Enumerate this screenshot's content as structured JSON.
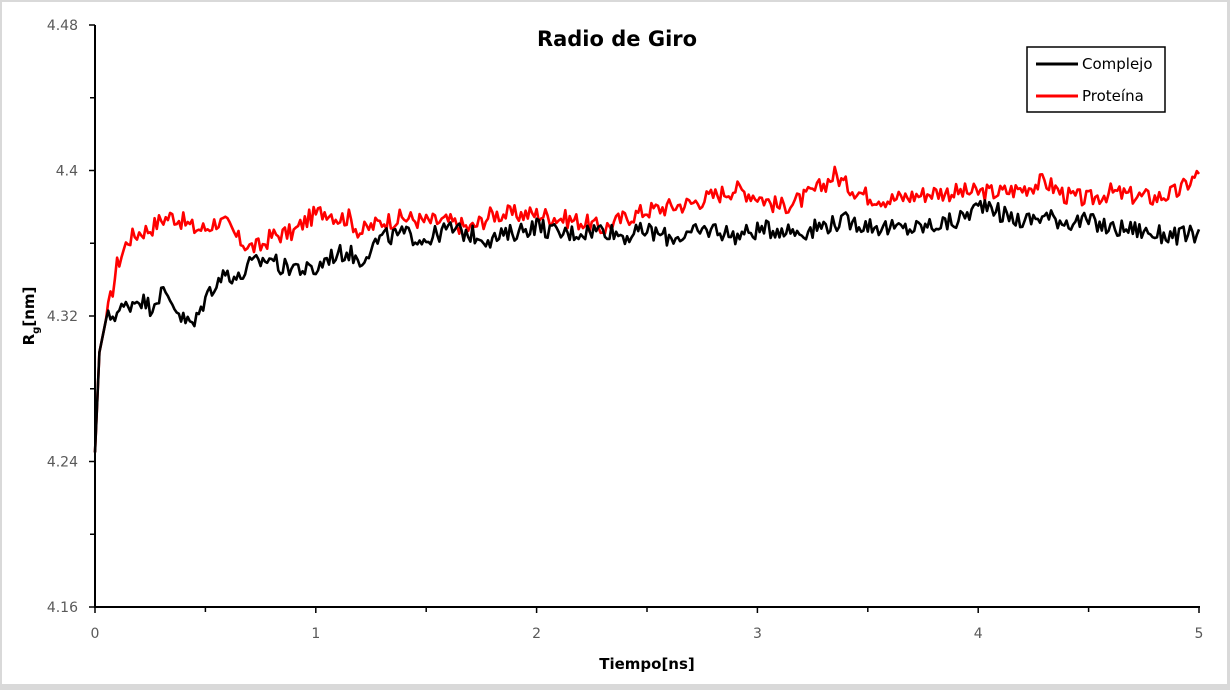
{
  "chart_data": {
    "type": "line",
    "title": "Radio de Giro",
    "xlabel": "Tiempo[ns]",
    "ylabel": "Rg[nm]",
    "ylabel_main": "R",
    "ylabel_sub": "g",
    "ylabel_unit": "[nm]",
    "xlim": [
      0,
      5
    ],
    "ylim": [
      4.16,
      4.48
    ],
    "x_ticks": [
      0,
      1,
      2,
      3,
      4,
      5
    ],
    "x_tick_labels": [
      "0",
      "1",
      "2",
      "3",
      "4",
      "5"
    ],
    "y_ticks": [
      4.16,
      4.24,
      4.32,
      4.4,
      4.48
    ],
    "y_tick_labels": [
      "4.16",
      "4.24",
      "4.32",
      "4.4",
      "4.48"
    ],
    "grid": false,
    "legend_position": "upper right",
    "series": [
      {
        "name": "Complejo",
        "color": "#000000",
        "x": [
          0,
          0.02,
          0.05,
          0.1,
          0.15,
          0.2,
          0.25,
          0.3,
          0.35,
          0.4,
          0.45,
          0.5,
          0.55,
          0.6,
          0.65,
          0.7,
          0.75,
          0.8,
          0.85,
          0.9,
          0.95,
          1.0,
          1.05,
          1.1,
          1.15,
          1.2,
          1.25,
          1.3,
          1.4,
          1.5,
          1.6,
          1.7,
          1.8,
          1.9,
          2.0,
          2.1,
          2.2,
          2.3,
          2.4,
          2.5,
          2.6,
          2.7,
          2.8,
          2.9,
          3.0,
          3.1,
          3.2,
          3.3,
          3.4,
          3.5,
          3.6,
          3.7,
          3.8,
          3.9,
          4.0,
          4.05,
          4.1,
          4.2,
          4.3,
          4.4,
          4.5,
          4.6,
          4.7,
          4.8,
          4.9,
          5.0
        ],
        "values": [
          4.245,
          4.3,
          4.318,
          4.322,
          4.326,
          4.33,
          4.325,
          4.333,
          4.328,
          4.318,
          4.315,
          4.33,
          4.339,
          4.344,
          4.34,
          4.348,
          4.35,
          4.352,
          4.346,
          4.348,
          4.345,
          4.345,
          4.352,
          4.354,
          4.355,
          4.35,
          4.358,
          4.363,
          4.365,
          4.362,
          4.368,
          4.365,
          4.362,
          4.366,
          4.37,
          4.365,
          4.366,
          4.368,
          4.364,
          4.367,
          4.363,
          4.365,
          4.368,
          4.364,
          4.367,
          4.368,
          4.366,
          4.37,
          4.372,
          4.37,
          4.368,
          4.368,
          4.37,
          4.372,
          4.38,
          4.383,
          4.376,
          4.372,
          4.375,
          4.372,
          4.372,
          4.368,
          4.368,
          4.365,
          4.364,
          4.365
        ]
      },
      {
        "name": "Proteína",
        "color": "#ff0000",
        "x": [
          0,
          0.02,
          0.05,
          0.08,
          0.1,
          0.15,
          0.2,
          0.25,
          0.3,
          0.35,
          0.4,
          0.45,
          0.5,
          0.55,
          0.6,
          0.65,
          0.7,
          0.75,
          0.8,
          0.85,
          0.9,
          0.95,
          1.0,
          1.05,
          1.1,
          1.15,
          1.2,
          1.3,
          1.4,
          1.5,
          1.6,
          1.7,
          1.8,
          1.9,
          2.0,
          2.1,
          2.2,
          2.3,
          2.4,
          2.5,
          2.6,
          2.7,
          2.8,
          2.9,
          3.0,
          3.1,
          3.2,
          3.3,
          3.35,
          3.4,
          3.5,
          3.6,
          3.7,
          3.8,
          3.9,
          4.0,
          4.1,
          4.2,
          4.3,
          4.4,
          4.5,
          4.6,
          4.7,
          4.8,
          4.9,
          5.0
        ],
        "values": [
          4.245,
          4.3,
          4.318,
          4.335,
          4.348,
          4.362,
          4.366,
          4.368,
          4.373,
          4.375,
          4.372,
          4.368,
          4.368,
          4.372,
          4.37,
          4.362,
          4.358,
          4.358,
          4.364,
          4.365,
          4.366,
          4.372,
          4.376,
          4.378,
          4.374,
          4.374,
          4.366,
          4.372,
          4.374,
          4.372,
          4.372,
          4.368,
          4.376,
          4.376,
          4.376,
          4.374,
          4.372,
          4.368,
          4.374,
          4.378,
          4.38,
          4.382,
          4.386,
          4.39,
          4.386,
          4.38,
          4.384,
          4.392,
          4.398,
          4.392,
          4.386,
          4.384,
          4.386,
          4.388,
          4.388,
          4.388,
          4.388,
          4.39,
          4.394,
          4.386,
          4.384,
          4.388,
          4.386,
          4.385,
          4.388,
          4.398
        ]
      }
    ]
  },
  "legend": {
    "items": [
      {
        "label": "Complejo",
        "color": "#000000"
      },
      {
        "label": "Proteína",
        "color": "#ff0000"
      }
    ]
  }
}
